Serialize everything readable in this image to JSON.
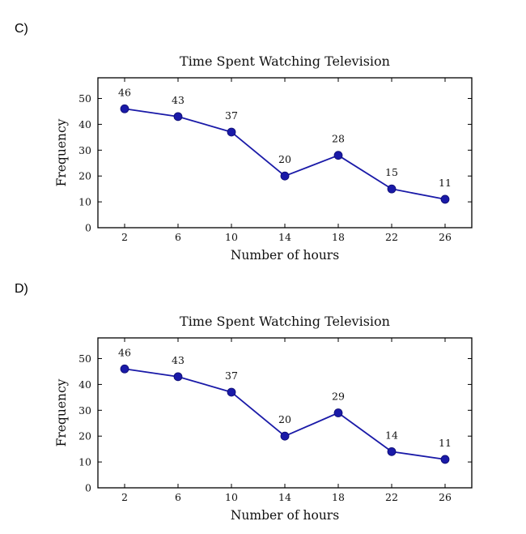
{
  "options": [
    {
      "label": "C)",
      "chart_data": {
        "type": "line",
        "title": "Time Spent Watching Television",
        "xlabel": "Number of hours",
        "ylabel": "Frequency",
        "x": [
          2,
          6,
          10,
          14,
          18,
          22,
          26
        ],
        "values": [
          46,
          43,
          37,
          20,
          28,
          15,
          11
        ],
        "xticks": [
          "2",
          "6",
          "10",
          "14",
          "18",
          "22",
          "26"
        ],
        "yticks": [
          "0",
          "10",
          "20",
          "30",
          "40",
          "50"
        ],
        "xlim": [
          0,
          28
        ],
        "ylim": [
          0,
          58
        ],
        "grid": false,
        "color": "#1a1aa8"
      }
    },
    {
      "label": "D)",
      "chart_data": {
        "type": "line",
        "title": "Time Spent Watching Television",
        "xlabel": "Number of hours",
        "ylabel": "Frequency",
        "x": [
          2,
          6,
          10,
          14,
          18,
          22,
          26
        ],
        "values": [
          46,
          43,
          37,
          20,
          29,
          14,
          11
        ],
        "xticks": [
          "2",
          "6",
          "10",
          "14",
          "18",
          "22",
          "26"
        ],
        "yticks": [
          "0",
          "10",
          "20",
          "30",
          "40",
          "50"
        ],
        "xlim": [
          0,
          28
        ],
        "ylim": [
          0,
          58
        ],
        "grid": false,
        "color": "#1a1aa8"
      }
    }
  ]
}
